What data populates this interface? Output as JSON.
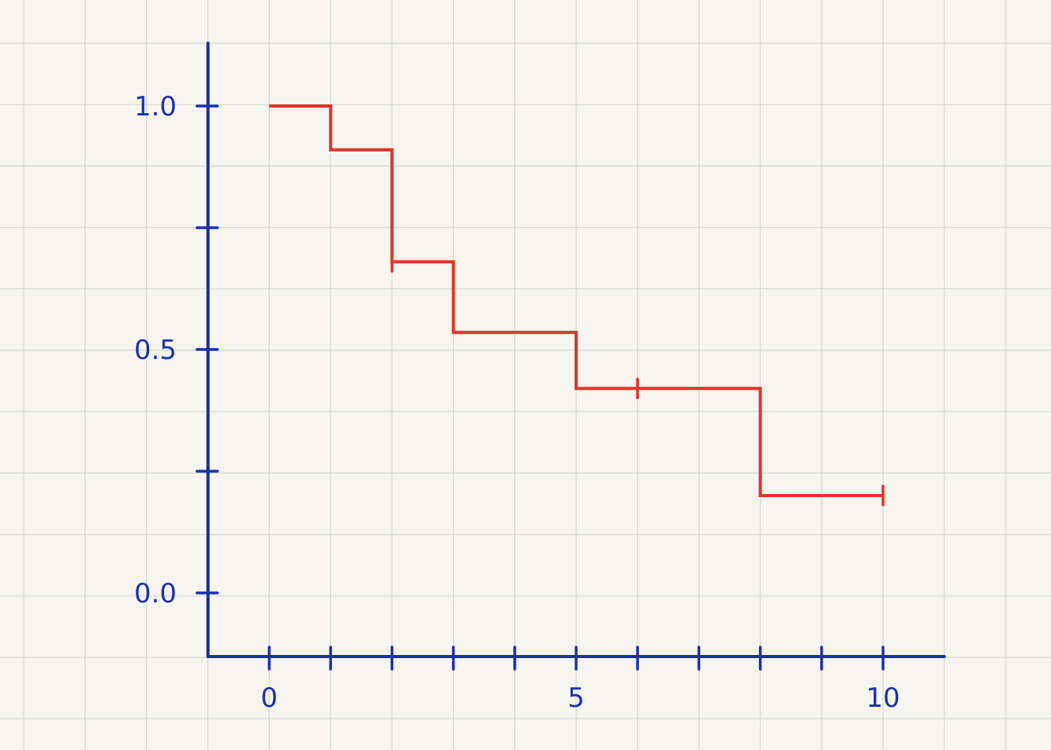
{
  "chart_data": {
    "type": "line",
    "subtype": "step",
    "title": "",
    "xlabel": "",
    "ylabel": "",
    "xlim": [
      -1,
      11
    ],
    "ylim": [
      -0.13,
      1.13
    ],
    "x_ticks": [
      0,
      1,
      2,
      3,
      4,
      5,
      6,
      7,
      8,
      9,
      10
    ],
    "x_tick_labels": [
      {
        "value": 0,
        "label": "0"
      },
      {
        "value": 5,
        "label": "5"
      },
      {
        "value": 10,
        "label": "10"
      }
    ],
    "y_ticks": [
      0.0,
      0.25,
      0.5,
      0.75,
      1.0
    ],
    "y_tick_labels": [
      {
        "value": 0.0,
        "label": "0.0"
      },
      {
        "value": 0.5,
        "label": "0.5"
      },
      {
        "value": 1.0,
        "label": "1.0"
      }
    ],
    "grid": true,
    "series": [
      {
        "color": "#e0342a",
        "steps": [
          {
            "x": 0,
            "y": 1.0
          },
          {
            "x": 1,
            "y": 0.91
          },
          {
            "x": 2,
            "y": 0.68
          },
          {
            "x": 3,
            "y": 0.535
          },
          {
            "x": 5,
            "y": 0.42
          },
          {
            "x": 8,
            "y": 0.2
          },
          {
            "x": 10,
            "y": 0.2
          }
        ],
        "censored": [
          {
            "x": 2,
            "y": 0.68
          },
          {
            "x": 6,
            "y": 0.42
          },
          {
            "x": 10,
            "y": 0.2
          }
        ]
      }
    ],
    "colors": {
      "background": "#f6f5ef",
      "grid": "#d6d6d0",
      "axis": "#1a2fb3",
      "series": "#e0342a"
    }
  }
}
